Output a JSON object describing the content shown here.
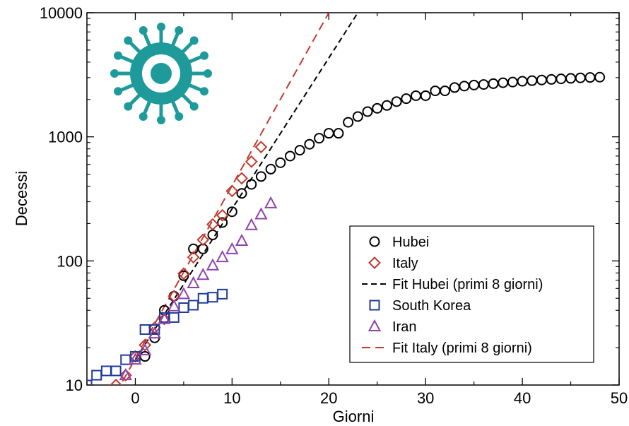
{
  "chart_data": {
    "type": "scatter",
    "xlabel": "Giorni",
    "ylabel": "Decessi",
    "xlim": [
      -5,
      50
    ],
    "ylim": [
      10,
      10000
    ],
    "yscale": "log",
    "grid": false,
    "legend_position": "bottom-right",
    "x_ticks": [
      0,
      10,
      20,
      30,
      40,
      50
    ],
    "x_tick_labels": [
      "0",
      "10",
      "20",
      "30",
      "40",
      "50"
    ],
    "y_ticks": [
      10,
      100,
      1000,
      10000
    ],
    "y_tick_labels": [
      "10",
      "100",
      "1000",
      "10000"
    ],
    "icon": "virus-icon",
    "icon_color": "#1f9a9a",
    "series": [
      {
        "name": "Hubei",
        "marker": "circle",
        "color": "#000000",
        "x": [
          1,
          2,
          3,
          4,
          5,
          6,
          7,
          8,
          9,
          10,
          11,
          12,
          13,
          14,
          15,
          16,
          17,
          18,
          19,
          20,
          21,
          22,
          23,
          24,
          25,
          26,
          27,
          28,
          29,
          30,
          31,
          32,
          33,
          34,
          35,
          36,
          37,
          38,
          39,
          40,
          41,
          42,
          43,
          44,
          45,
          46,
          47,
          48
        ],
        "y": [
          17,
          24,
          40,
          52,
          76,
          125,
          125,
          162,
          204,
          249,
          350,
          414,
          479,
          549,
          618,
          699,
          780,
          871,
          974,
          1068,
          1068,
          1310,
          1457,
          1596,
          1696,
          1789,
          1921,
          2029,
          2144,
          2144,
          2346,
          2346,
          2495,
          2563,
          2615,
          2641,
          2682,
          2727,
          2761,
          2803,
          2835,
          2871,
          2902,
          2931,
          2959,
          2986,
          3008,
          3024
        ]
      },
      {
        "name": "Italy",
        "marker": "diamond",
        "color": "#c0392b",
        "x": [
          -2,
          -1,
          0,
          1,
          2,
          3,
          4,
          5,
          6,
          7,
          8,
          9,
          10,
          11,
          12,
          13
        ],
        "y": [
          10,
          12,
          17,
          21,
          29,
          34,
          52,
          79,
          107,
          148,
          197,
          233,
          366,
          463,
          631,
          827
        ]
      },
      {
        "name": "Fit Hubei (primi 8 giorni)",
        "line": "dashed",
        "color": "#000000",
        "x": [
          0,
          23
        ],
        "y": [
          16,
          10000
        ]
      },
      {
        "name": "South Korea",
        "marker": "square",
        "color": "#1f3a9a",
        "x": [
          -5,
          -4,
          -3,
          -2,
          -1,
          0,
          1,
          2,
          3,
          4,
          5,
          6,
          7,
          8,
          9
        ],
        "y": [
          10,
          12,
          13,
          13,
          16,
          17,
          28,
          28,
          35,
          35,
          42,
          44,
          50,
          51,
          54
        ]
      },
      {
        "name": "Iran",
        "marker": "triangle",
        "color": "#8e44ad",
        "x": [
          -1,
          0,
          1,
          2,
          3,
          4,
          5,
          6,
          7,
          8,
          9,
          10,
          11,
          12,
          13,
          14
        ],
        "y": [
          12,
          16,
          19,
          26,
          34,
          43,
          54,
          66,
          77,
          92,
          107,
          124,
          145,
          194,
          237,
          291
        ]
      },
      {
        "name": "Fit Italy (primi 8 giorni)",
        "line": "dashed",
        "color": "#c0392b",
        "x": [
          -2,
          20
        ],
        "y": [
          8.6,
          10000
        ]
      }
    ]
  }
}
